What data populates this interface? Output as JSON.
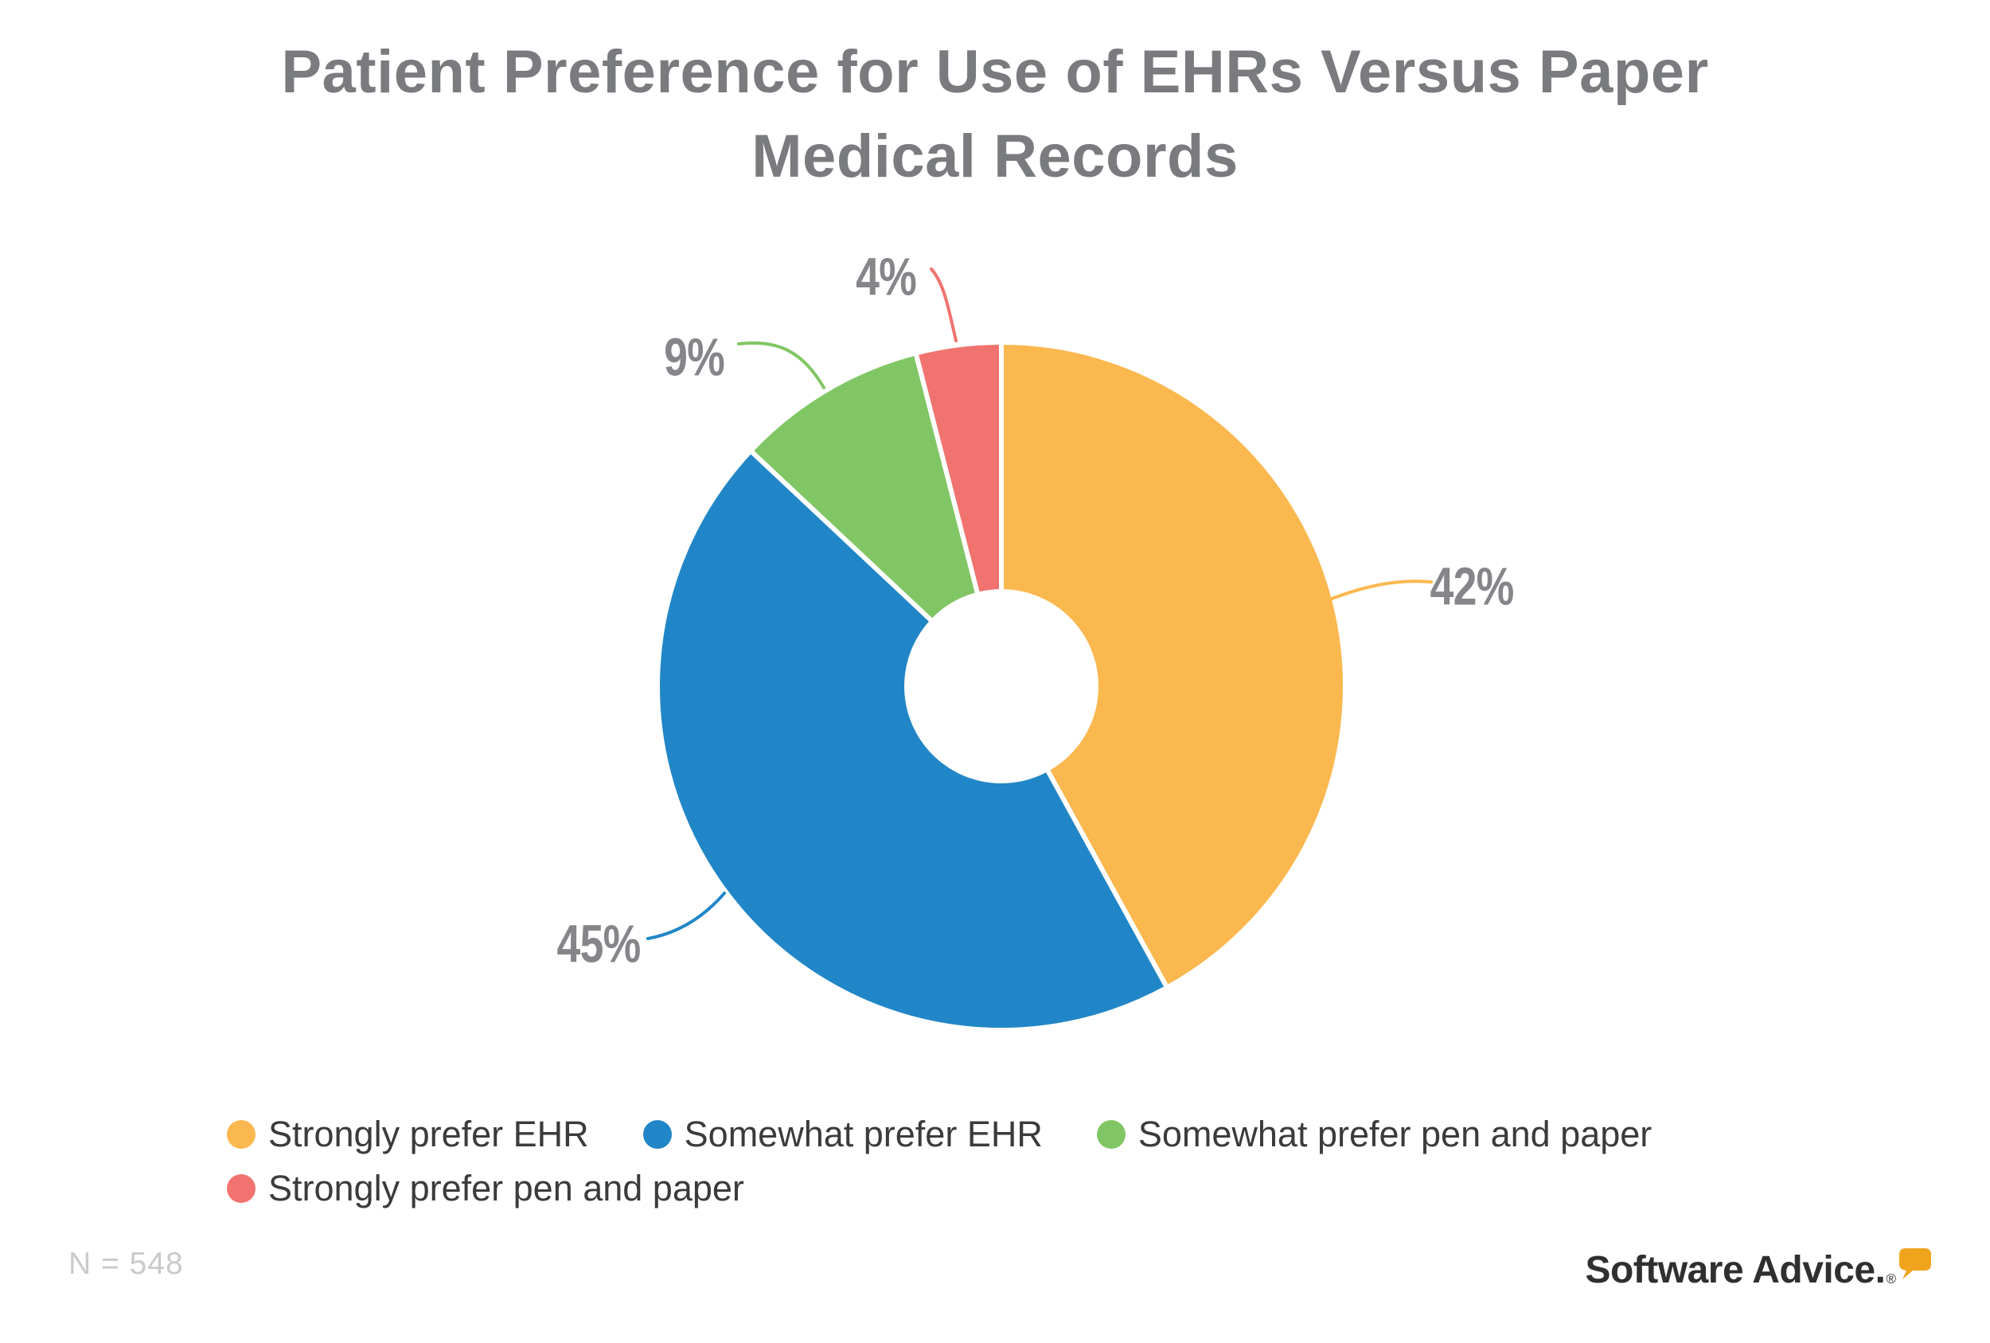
{
  "header": {
    "title_line1": "Patient Preference for Use of EHRs Versus Paper",
    "title_line2": "Medical Records"
  },
  "chart_data": {
    "type": "pie",
    "subtype": "donut",
    "title": "Patient Preference for Use of EHRs Versus Paper Medical Records",
    "start_angle_deg": 0,
    "direction": "clockwise",
    "unit": "percent",
    "slices": [
      {
        "name": "Strongly prefer EHR",
        "value": 42,
        "label": "42%",
        "color": "#FBB84F"
      },
      {
        "name": "Somewhat prefer EHR",
        "value": 45,
        "label": "45%",
        "color": "#2186C7"
      },
      {
        "name": "Somewhat prefer pen and paper",
        "value": 9,
        "label": "9%",
        "color": "#81C665"
      },
      {
        "name": "Strongly prefer pen and paper",
        "value": 4,
        "label": "4%",
        "color": "#F0736F"
      }
    ],
    "legend_position": "bottom",
    "sample_size_note": "N = 548"
  },
  "legend": {
    "items": [
      {
        "label": "Strongly prefer EHR",
        "color": "#FBB84F"
      },
      {
        "label": "Somewhat prefer EHR",
        "color": "#2186C7"
      },
      {
        "label": "Somewhat prefer pen and paper",
        "color": "#81C665"
      },
      {
        "label": "Strongly prefer pen and paper",
        "color": "#F0736F"
      }
    ]
  },
  "footer": {
    "n_label": "N = 548",
    "brand": "Software Advice.",
    "registered": "®",
    "brand_bubble_color": "#F0A41E"
  }
}
